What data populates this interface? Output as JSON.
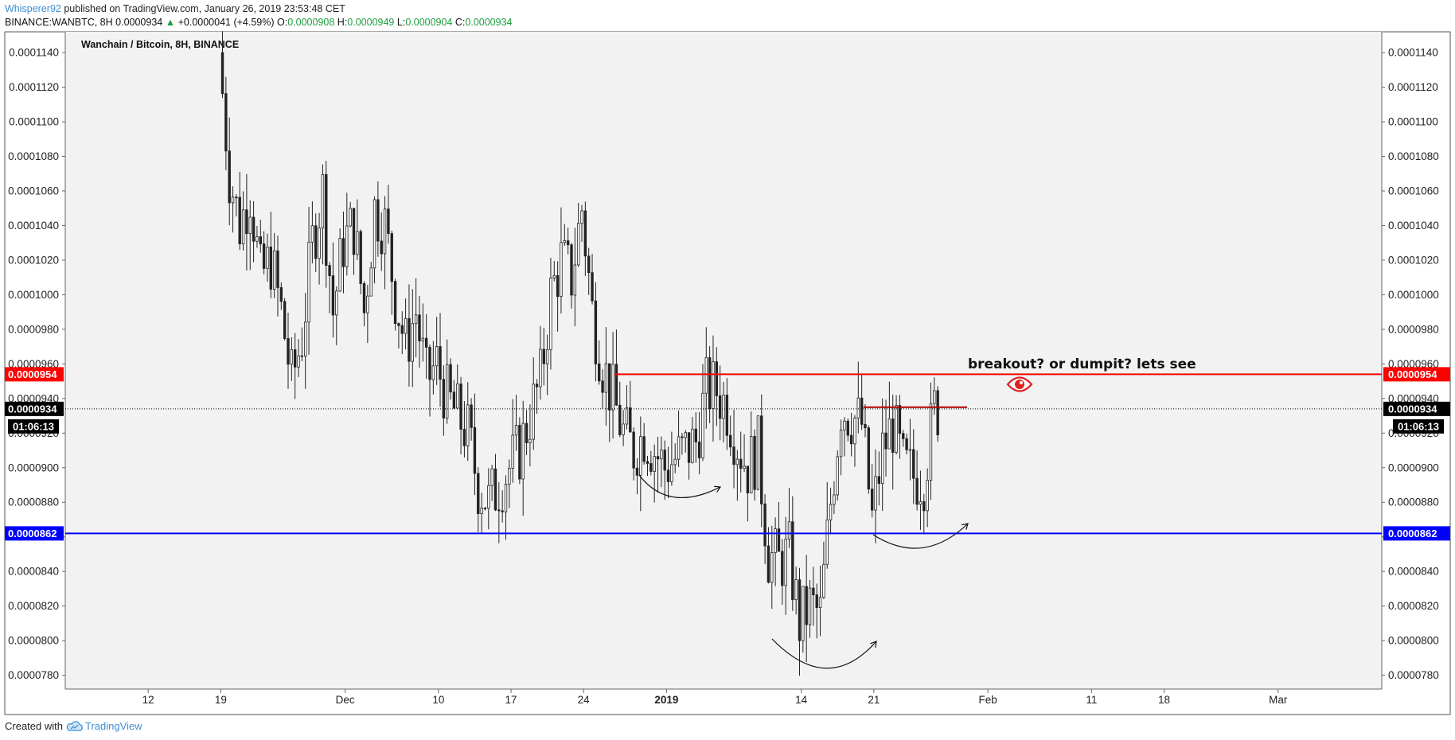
{
  "header": {
    "author": "Whisperer92",
    "published_text": "published on TradingView.com, January 26, 2019 23:53:48 CET",
    "symbol_line": "BINANCE:WANBTC, 8H",
    "last": "0.0000934",
    "change_arrow": "▲",
    "change": "+0.0000041 (+4.59%)",
    "o_label": "O:",
    "o_val": "0.0000908",
    "h_label": "H:",
    "h_val": "0.0000949",
    "l_label": "L:",
    "l_val": "0.0000904",
    "c_label": "C:",
    "c_val": "0.0000934"
  },
  "footer": {
    "created_with": "Created with",
    "brand": "TradingView"
  },
  "colors": {
    "up": "#1e9e3e",
    "red_line": "#ff0000",
    "blue_line": "#0000ff",
    "author": "#3d8fd6",
    "plot_bg": "#f2f2f2"
  },
  "chart_data": {
    "type": "candlestick",
    "title": "Wanchain / Bitcoin, 8H, BINANCE",
    "ylim": [
      7.72e-05,
      0.0001152
    ],
    "y_ticks": [
      "0.0000780",
      "0.0000800",
      "0.0000820",
      "0.0000840",
      "0.0000860",
      "0.0000880",
      "0.0000900",
      "0.0000920",
      "0.0000940",
      "0.0000960",
      "0.0000980",
      "0.0001000",
      "0.0001020",
      "0.0001040",
      "0.0001060",
      "0.0001080",
      "0.0001100",
      "0.0001120",
      "0.0001140"
    ],
    "x_ticks": [
      {
        "label": "12",
        "date": "2018-11-12",
        "bold": false
      },
      {
        "label": "19",
        "date": "2018-11-19",
        "bold": false
      },
      {
        "label": "Dec",
        "date": "2018-12-01",
        "bold": false
      },
      {
        "label": "10",
        "date": "2018-12-10",
        "bold": false
      },
      {
        "label": "17",
        "date": "2018-12-17",
        "bold": false
      },
      {
        "label": "24",
        "date": "2018-12-24",
        "bold": false
      },
      {
        "label": "2019",
        "date": "2019-01-01",
        "bold": true
      },
      {
        "label": "14",
        "date": "2019-01-14",
        "bold": false
      },
      {
        "label": "21",
        "date": "2019-01-21",
        "bold": false
      },
      {
        "label": "Feb",
        "date": "2019-02-01",
        "bold": false
      },
      {
        "label": "11",
        "date": "2019-02-11",
        "bold": false
      },
      {
        "label": "18",
        "date": "2019-02-18",
        "bold": false
      },
      {
        "label": "Mar",
        "date": "2019-03-01",
        "bold": false
      }
    ],
    "x_range": [
      "2018-11-04",
      "2019-03-11"
    ],
    "candles_range": [
      "2018-11-19",
      "2019-01-27"
    ],
    "price_path": [
      [
        "2018-11-19",
        0.000114
      ],
      [
        "2018-11-20",
        0.000107
      ],
      [
        "2018-11-21",
        0.000104
      ],
      [
        "2018-11-22",
        0.000106
      ],
      [
        "2018-11-23",
        0.000101
      ],
      [
        "2018-11-24",
        0.000102
      ],
      [
        "2018-11-25",
        9.9e-05
      ],
      [
        "2018-11-26",
        9.5e-05
      ],
      [
        "2018-11-27",
        9.75e-05
      ],
      [
        "2018-11-28",
        0.000103
      ],
      [
        "2018-11-29",
        0.000106
      ],
      [
        "2018-11-30",
        9.9e-05
      ],
      [
        "2018-12-01",
        0.000103
      ],
      [
        "2018-12-02",
        0.000104
      ],
      [
        "2018-12-03",
        9.9e-05
      ],
      [
        "2018-12-04",
        0.000105
      ],
      [
        "2018-12-05",
        0.000104
      ],
      [
        "2018-12-06",
        0.0001
      ],
      [
        "2018-12-07",
        9.7e-05
      ],
      [
        "2018-12-08",
        9.9e-05
      ],
      [
        "2018-12-09",
        9.5e-05
      ],
      [
        "2018-12-10",
        9.6e-05
      ],
      [
        "2018-12-11",
        9.4e-05
      ],
      [
        "2018-12-12",
        9.3e-05
      ],
      [
        "2018-12-13",
        9.2e-05
      ],
      [
        "2018-12-14",
        8.9e-05
      ],
      [
        "2018-12-15",
        8.8e-05
      ],
      [
        "2018-12-16",
        8.9e-05
      ],
      [
        "2018-12-17",
        9e-05
      ],
      [
        "2018-12-18",
        9.1e-05
      ],
      [
        "2018-12-19",
        9.3e-05
      ],
      [
        "2018-12-20",
        9.5e-05
      ],
      [
        "2018-12-21",
        0.0001
      ],
      [
        "2018-12-22",
        0.000102
      ],
      [
        "2018-12-23",
        0.000101
      ],
      [
        "2018-12-24",
        0.000105
      ],
      [
        "2018-12-25",
        9.9e-05
      ],
      [
        "2018-12-26",
        9.6e-05
      ],
      [
        "2018-12-27",
        9.4e-05
      ],
      [
        "2018-12-28",
        9.2e-05
      ],
      [
        "2018-12-29",
        9.1e-05
      ],
      [
        "2018-12-30",
        9.2e-05
      ],
      [
        "2018-12-31",
        9.1e-05
      ],
      [
        "2019-01-01",
        9e-05
      ],
      [
        "2019-01-02",
        9.05e-05
      ],
      [
        "2019-01-03",
        9.1e-05
      ],
      [
        "2019-01-04",
        9.15e-05
      ],
      [
        "2019-01-05",
        9.45e-05
      ],
      [
        "2019-01-06",
        9.45e-05
      ],
      [
        "2019-01-07",
        9.35e-05
      ],
      [
        "2019-01-08",
        9.15e-05
      ],
      [
        "2019-01-09",
        9e-05
      ],
      [
        "2019-01-10",
        9.1e-05
      ],
      [
        "2019-01-11",
        8.5e-05
      ],
      [
        "2019-01-12",
        8.45e-05
      ],
      [
        "2019-01-13",
        8.5e-05
      ],
      [
        "2019-01-14",
        8.1e-05
      ],
      [
        "2019-01-15",
        8.2e-05
      ],
      [
        "2019-01-16",
        8.15e-05
      ],
      [
        "2019-01-17",
        8.8e-05
      ],
      [
        "2019-01-18",
        9.35e-05
      ],
      [
        "2019-01-19",
        9.3e-05
      ],
      [
        "2019-01-20",
        9.25e-05
      ],
      [
        "2019-01-21",
        8.7e-05
      ],
      [
        "2019-01-22",
        9.1e-05
      ],
      [
        "2019-01-23",
        9.25e-05
      ],
      [
        "2019-01-24",
        9e-05
      ],
      [
        "2019-01-25",
        8.95e-05
      ],
      [
        "2019-01-26",
        8.95e-05
      ],
      [
        "2019-01-27",
        9.34e-05
      ]
    ],
    "lines": [
      {
        "name": "resistance",
        "price": 9.54e-05,
        "label": "0.0000954",
        "color": "#ff0000",
        "from": "2018-12-27"
      },
      {
        "name": "support",
        "price": 8.62e-05,
        "label": "0.0000862",
        "color": "#0000ff",
        "from": "2018-11-04"
      },
      {
        "name": "last-price",
        "price": 9.34e-05,
        "label": "0.0000934",
        "color": "#000000",
        "dotted": true
      }
    ],
    "neckline": {
      "price": 9.35e-05,
      "from": "2019-01-20",
      "to": "2019-01-30",
      "color": "#b00000"
    },
    "countdown": "01:06:13",
    "annotation": "breakout? or dumpit? lets see"
  }
}
